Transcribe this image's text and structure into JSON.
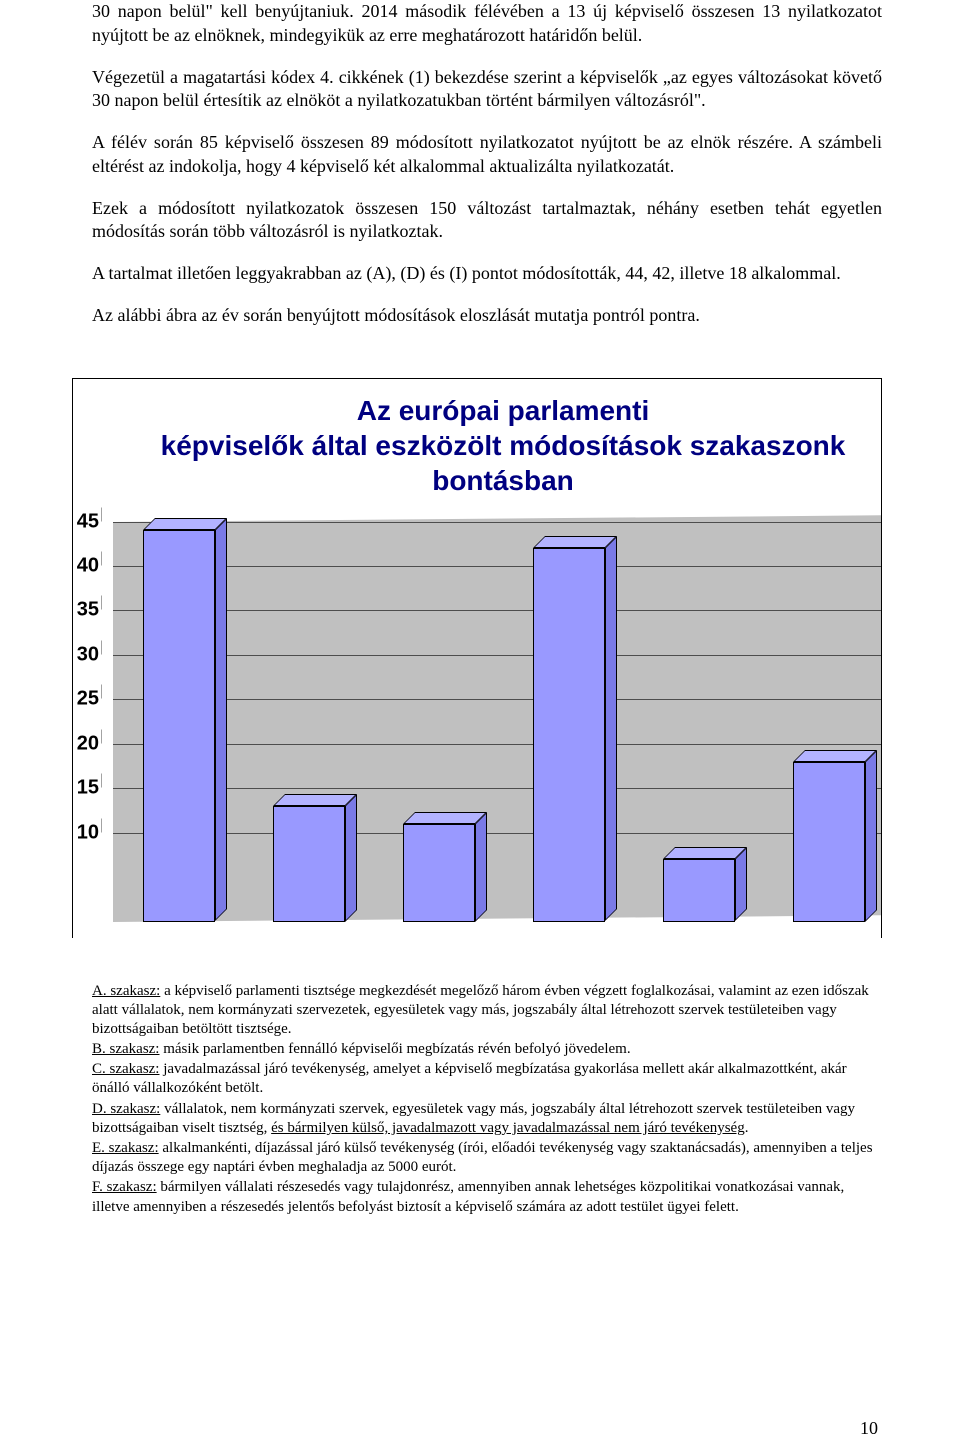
{
  "paragraphs": {
    "p1": "30 napon belül\" kell benyújtaniuk. 2014 második félévében a 13 új képviselő összesen 13 nyilatkozatot nyújtott be az elnöknek, mindegyikük az erre meghatározott határidőn belül.",
    "p2": "Végezetül a magatartási kódex 4. cikkének (1) bekezdése szerint a képviselők „az egyes változásokat követő 30 napon belül értesítik az elnököt a nyilatkozatukban történt bármilyen változásról\".",
    "p3": "A félév során 85 képviselő összesen 89 módosított nyilatkozatot nyújtott be az elnök részére. A számbeli eltérést az indokolja, hogy 4 képviselő két alkalommal aktualizálta nyilatkozatát.",
    "p4": "Ezek a módosított nyilatkozatok összesen 150 változást tartalmaztak, néhány esetben tehát egyetlen módosítás során több változásról is nyilatkoztak.",
    "p5": "A tartalmat illetően leggyakrabban az (A), (D) és (I) pontot módosították, 44, 42, illetve 18 alkalommal.",
    "p6": "Az alábbi ábra az év során benyújtott módosítások eloszlását mutatja pontról pontra."
  },
  "chart": {
    "title_line1": "Az európai parlamenti",
    "title_line2": "képviselők által eszközölt módosítások szakaszonk",
    "title_line3": "bontásban",
    "title_color": "#000080",
    "background_color": "#c0c0c0",
    "bar_color_front": "#9999ff",
    "bar_color_top": "#b3b3ff",
    "bar_color_side": "#7a7ae6",
    "y_ticks": [
      "45",
      "40",
      "35",
      "30",
      "25",
      "20",
      "15",
      "10"
    ],
    "y_max": 45,
    "y_min_visible": 10,
    "values": [
      44,
      13,
      11,
      42,
      7,
      18
    ]
  },
  "footnotes": {
    "a_label": "A. szakasz:",
    "a_text": " a képviselő parlamenti tisztsége megkezdését megelőző három évben végzett foglalkozásai, valamint az ezen időszak alatt vállalatok, nem kormányzati szervezetek, egyesületek vagy más, jogszabály által létrehozott szervek testületeiben vagy bizottságaiban betöltött tisztsége.",
    "b_label": "B. szakasz:",
    "b_text": " másik parlamentben fennálló képviselői megbízatás révén befolyó jövedelem.",
    "c_label": "C. szakasz:",
    "c_text": " javadalmazással járó tevékenység, amelyet a képviselő megbízatása gyakorlása mellett akár alkalmazottként, akár önálló vállalkozóként betölt.",
    "d_label": "D. szakasz:",
    "d_text": " vállalatok, nem kormányzati szervek, egyesületek vagy más, jogszabály által létrehozott szervek testületeiben vagy bizottságaiban viselt tisztség, ",
    "d_text2": "és bármilyen külső, javadalmazott vagy javadalmazással nem járó tevékenység",
    "d_text3": ".",
    "e_label": "E. szakasz:",
    "e_text": " alkalmankénti, díjazással járó külső tevékenység (írói, előadói tevékenység vagy szaktanácsadás), amennyiben a teljes díjazás összege egy naptári évben meghaladja az 5000 eurót.",
    "f_label": "F. szakasz:",
    "f_text": " bármilyen vállalati részesedés vagy tulajdonrész, amennyiben annak lehetséges közpolitikai vonatkozásai vannak, illetve amennyiben a részesedés jelentős befolyást biztosít a képviselő számára az adott testület ügyei felett."
  },
  "page_number": "10"
}
